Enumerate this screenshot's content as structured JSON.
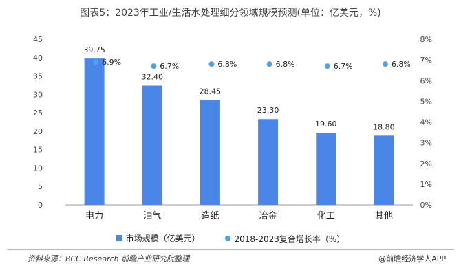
{
  "chart_data": {
    "type": "bar",
    "title": "图表5：2023年工业/生活水处理细分领域规模预测(单位：亿美元，%)",
    "categories": [
      "电力",
      "油气",
      "造纸",
      "冶金",
      "化工",
      "其他"
    ],
    "series": [
      {
        "name": "市场规模（亿美元）",
        "type": "bar",
        "axis": "left",
        "values": [
          39.75,
          32.4,
          28.45,
          23.3,
          19.6,
          18.8
        ],
        "labels": [
          "39.75",
          "32.40",
          "28.45",
          "23.30",
          "19.60",
          "18.80"
        ]
      },
      {
        "name": "2018-2023复合增长率（%）",
        "type": "scatter",
        "axis": "right",
        "values": [
          6.9,
          6.7,
          6.8,
          6.8,
          6.7,
          6.8
        ],
        "labels": [
          "6.9%",
          "6.7%",
          "6.8%",
          "6.8%",
          "6.7%",
          "6.8%"
        ]
      }
    ],
    "y_left": {
      "min": 0,
      "max": 45,
      "ticks": [
        "0",
        "5",
        "10",
        "15",
        "20",
        "25",
        "30",
        "35",
        "40",
        "45"
      ]
    },
    "y_right": {
      "min": 0,
      "max": 8,
      "ticks": [
        "0%",
        "1%",
        "2%",
        "3%",
        "4%",
        "5%",
        "6%",
        "7%",
        "8%"
      ]
    },
    "grid": false,
    "legend": "bottom",
    "colors": {
      "bar": "#4a86e8",
      "dot": "#4fa3e0"
    }
  },
  "footer": {
    "source": "资料来源：BCC Research 前瞻产业研究院整理",
    "brand": "@前瞻经济学人APP"
  }
}
